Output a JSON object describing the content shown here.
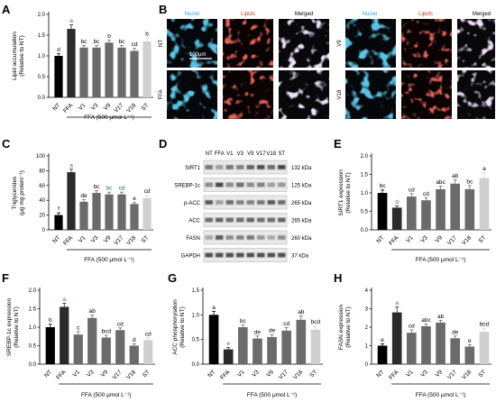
{
  "panels": {
    "A": "A",
    "B": "B",
    "C": "C",
    "D": "D",
    "E": "E",
    "F": "F",
    "G": "G",
    "H": "H"
  },
  "colors": {
    "nt": "#000000",
    "ffa": "#2a2a2a",
    "treat": "#6b6b6b",
    "st": "#cfcfcf",
    "sig": "#c0392b",
    "sig_green": "#1f7a2e",
    "nuclei": "#3aa0c8",
    "lipids": "#c0392b"
  },
  "chart_data": [
    {
      "id": "A",
      "type": "bar",
      "categories": [
        "NT",
        "FFA",
        "V1",
        "V3",
        "V9",
        "V17",
        "V18",
        "ST"
      ],
      "values": [
        1.0,
        1.65,
        1.2,
        1.2,
        1.32,
        1.2,
        1.12,
        1.35
      ],
      "errors": [
        0.05,
        0.1,
        0.05,
        0.05,
        0.06,
        0.05,
        0.06,
        0.08
      ],
      "letters": [
        "d",
        "a",
        "bc",
        "bc",
        "b",
        "bc",
        "cd",
        "b"
      ],
      "ylabel": "Lipid accumulation\n(Relative to NT)",
      "ylim": [
        0,
        2.0
      ],
      "yticks": [
        0.0,
        0.5,
        1.0,
        1.5,
        2.0
      ],
      "xcaption": "FFA (500 μmol L⁻¹)"
    },
    {
      "id": "C",
      "type": "bar",
      "categories": [
        "NT",
        "FFA",
        "V1",
        "V3",
        "V9",
        "V17",
        "V18",
        "ST"
      ],
      "values": [
        20,
        78,
        38,
        50,
        48,
        48,
        35,
        43
      ],
      "errors": [
        3,
        4,
        3,
        3,
        3,
        3,
        2,
        4
      ],
      "letters": [
        "f",
        "a",
        "de",
        "bc",
        "bc",
        "cd",
        "e",
        "cd"
      ],
      "ylabel": "Triglycerides\n(μg mg protein⁻¹)",
      "ylim": [
        0,
        100
      ],
      "yticks": [
        0,
        20,
        40,
        60,
        80,
        100
      ],
      "xcaption": "FFA (500 μmol L⁻¹)"
    },
    {
      "id": "E",
      "type": "bar",
      "categories": [
        "NT",
        "FFA",
        "V1",
        "V3",
        "V9",
        "V17",
        "V18",
        "ST"
      ],
      "values": [
        1.0,
        0.6,
        0.9,
        0.8,
        1.1,
        1.25,
        1.1,
        1.4
      ],
      "errors": [
        0.08,
        0.05,
        0.08,
        0.07,
        0.08,
        0.1,
        0.1,
        0.15
      ],
      "letters": [
        "bc",
        "d",
        "cd",
        "cd",
        "abc",
        "ab",
        "bc",
        "a"
      ],
      "ylabel": "SIRT1 expression\n(Relative to NT)",
      "ylim": [
        0,
        2.0
      ],
      "yticks": [
        0.0,
        0.5,
        1.0,
        1.5,
        2.0
      ],
      "xcaption": "FFA (500 μmol L⁻¹)"
    },
    {
      "id": "F",
      "type": "bar",
      "categories": [
        "NT",
        "FFA",
        "V1",
        "V3",
        "V9",
        "V17",
        "V18",
        "ST"
      ],
      "values": [
        1.0,
        1.55,
        0.8,
        1.25,
        0.72,
        0.92,
        0.5,
        0.65
      ],
      "errors": [
        0.08,
        0.1,
        0.08,
        0.08,
        0.06,
        0.06,
        0.05,
        0.06
      ],
      "letters": [
        "b",
        "a",
        "c",
        "ab",
        "bcd",
        "cd",
        "d",
        "cd"
      ],
      "ylabel": "SREBP-1c expression\n(Relative to NT)",
      "ylim": [
        0,
        2.0
      ],
      "yticks": [
        0.0,
        0.5,
        1.0,
        1.5,
        2.0
      ],
      "xcaption": "FFA (500 μmol L⁻¹)"
    },
    {
      "id": "G",
      "type": "bar",
      "categories": [
        "NT",
        "FFA",
        "V1",
        "V3",
        "V9",
        "V17",
        "V18",
        "ST"
      ],
      "values": [
        1.0,
        0.3,
        0.75,
        0.52,
        0.55,
        0.68,
        0.9,
        0.7
      ],
      "errors": [
        0.07,
        0.04,
        0.05,
        0.05,
        0.05,
        0.06,
        0.08,
        0.08
      ],
      "letters": [
        "a",
        "e",
        "bc",
        "de",
        "de",
        "cd",
        "ab",
        "bcd"
      ],
      "ylabel": "ACC phosphorylation\n(Relative to NT)",
      "ylim": [
        0,
        1.5
      ],
      "yticks": [
        0.0,
        0.5,
        1.0,
        1.5
      ],
      "xcaption": "FFA (500 μmol L⁻¹)"
    },
    {
      "id": "H",
      "type": "bar",
      "categories": [
        "NT",
        "FFA",
        "V1",
        "V3",
        "V9",
        "V17",
        "V18",
        "ST"
      ],
      "values": [
        1.0,
        2.8,
        1.7,
        2.05,
        2.25,
        1.4,
        0.95,
        1.75
      ],
      "errors": [
        0.1,
        0.3,
        0.15,
        0.12,
        0.12,
        0.12,
        0.1,
        0.2
      ],
      "letters": [
        "e",
        "a",
        "cd",
        "abc",
        "ab",
        "de",
        "e",
        "bcd"
      ],
      "ylabel": "FASN expression\n(Relative to NT)",
      "ylim": [
        0,
        4
      ],
      "yticks": [
        0,
        1,
        2,
        3,
        4
      ],
      "xcaption": "FFA (500 μmol L⁻¹)"
    }
  ],
  "microscopy": {
    "headers_left": [
      "Nuclei",
      "Lipids",
      "Merged"
    ],
    "headers_right": [
      "Nuclei",
      "Lipids",
      "Merged"
    ],
    "rows_left": [
      "NT",
      "FFA"
    ],
    "rows_right": [
      "V9",
      "V18"
    ],
    "scalebar": "100μm"
  },
  "western": {
    "lanes": [
      "NT",
      "FFA",
      "V1",
      "V3",
      "V9",
      "V17",
      "V18",
      "ST"
    ],
    "proteins": [
      "SIRT1",
      "SREBP-1c",
      "p-ACC",
      "ACC",
      "FASN",
      "GAPDH"
    ],
    "kda": [
      "132 kDa",
      "125 kDa",
      "265 kDa",
      "265 kDa",
      "260 kDa",
      "37 kDa"
    ]
  }
}
